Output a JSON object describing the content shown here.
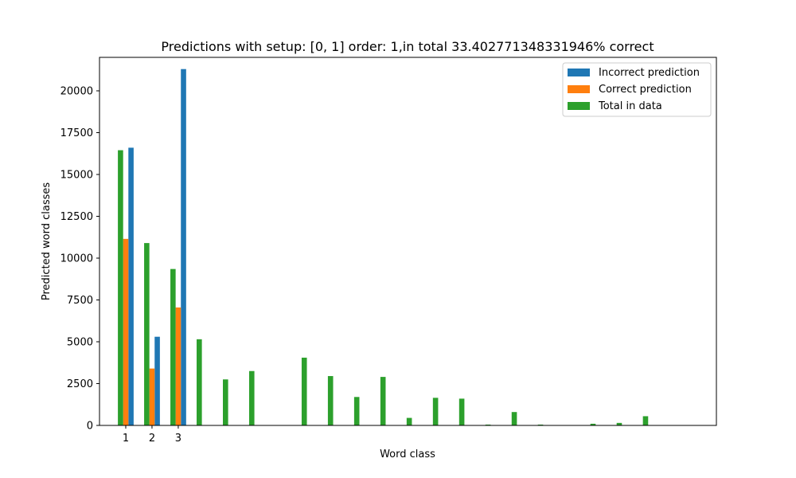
{
  "chart_data": {
    "type": "bar",
    "title": "Predictions with setup: [0, 1] order: 1,in total 33.402771348331946% correct",
    "xlabel": "Word class",
    "ylabel": "Predicted word classes",
    "ylim": [
      0,
      22000
    ],
    "xlim": [
      0,
      23.5
    ],
    "xticks": [
      {
        "x": 1,
        "label": "1"
      },
      {
        "x": 2,
        "label": "2"
      },
      {
        "x": 3,
        "label": "3"
      }
    ],
    "yticks": [
      {
        "value": 0,
        "label": "0"
      },
      {
        "value": 2500,
        "label": "2500"
      },
      {
        "value": 5000,
        "label": "5000"
      },
      {
        "value": 7500,
        "label": "7500"
      },
      {
        "value": 10000,
        "label": "10000"
      },
      {
        "value": 12500,
        "label": "12500"
      },
      {
        "value": 15000,
        "label": "15000"
      },
      {
        "value": 17500,
        "label": "17500"
      },
      {
        "value": 20000,
        "label": "20000"
      }
    ],
    "legend_position": "top-right",
    "series": [
      {
        "name": "Incorrect prediction",
        "color": "#1f77b4",
        "points": [
          {
            "x": 1,
            "value": 16600
          },
          {
            "x": 2,
            "value": 5300
          },
          {
            "x": 3,
            "value": 21300
          }
        ]
      },
      {
        "name": "Correct prediction",
        "color": "#ff7f0e",
        "points": [
          {
            "x": 1,
            "value": 11150
          },
          {
            "x": 2,
            "value": 3400
          },
          {
            "x": 3,
            "value": 7050
          }
        ]
      },
      {
        "name": "Total in data",
        "color": "#2ca02c",
        "points": [
          {
            "x": 1,
            "value": 16450
          },
          {
            "x": 2,
            "value": 10900
          },
          {
            "x": 3,
            "value": 9350
          },
          {
            "x": 4,
            "value": 5150
          },
          {
            "x": 5,
            "value": 2750
          },
          {
            "x": 6,
            "value": 3250
          },
          {
            "x": 8,
            "value": 4050
          },
          {
            "x": 9,
            "value": 2950
          },
          {
            "x": 10,
            "value": 1700
          },
          {
            "x": 11,
            "value": 2900
          },
          {
            "x": 12,
            "value": 450
          },
          {
            "x": 13,
            "value": 1650
          },
          {
            "x": 14,
            "value": 1600
          },
          {
            "x": 15,
            "value": 50
          },
          {
            "x": 16,
            "value": 800
          },
          {
            "x": 17,
            "value": 50
          },
          {
            "x": 19,
            "value": 100
          },
          {
            "x": 20,
            "value": 150
          },
          {
            "x": 21,
            "value": 550
          }
        ]
      }
    ]
  }
}
